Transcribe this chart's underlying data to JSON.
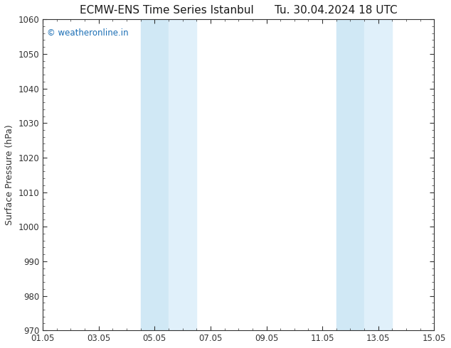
{
  "title_left": "ECMW-ENS Time Series Istanbul",
  "title_right": "Tu. 30.04.2024 18 UTC",
  "ylabel": "Surface Pressure (hPa)",
  "ylim": [
    970,
    1060
  ],
  "yticks": [
    970,
    980,
    990,
    1000,
    1010,
    1020,
    1030,
    1040,
    1050,
    1060
  ],
  "xlim_start": 0,
  "xlim_end": 14,
  "xtick_labels": [
    "01.05",
    "03.05",
    "05.05",
    "07.05",
    "09.05",
    "11.05",
    "13.05",
    "15.05"
  ],
  "xtick_positions": [
    0,
    2,
    4,
    6,
    8,
    10,
    12,
    14
  ],
  "shaded_bands": [
    {
      "x_start": 3.5,
      "x_end": 4.5,
      "color": "#d0e8f5"
    },
    {
      "x_start": 4.5,
      "x_end": 5.5,
      "color": "#e0f0fa"
    },
    {
      "x_start": 10.5,
      "x_end": 11.5,
      "color": "#d0e8f5"
    },
    {
      "x_start": 11.5,
      "x_end": 12.5,
      "color": "#e0f0fa"
    }
  ],
  "background_color": "#ffffff",
  "plot_bg_color": "#ffffff",
  "watermark_text": "© weatheronline.in",
  "watermark_color": "#1a6eb5",
  "title_color": "#1a1a1a",
  "axis_color": "#333333",
  "title_fontsize": 11,
  "label_fontsize": 9,
  "tick_fontsize": 8.5
}
